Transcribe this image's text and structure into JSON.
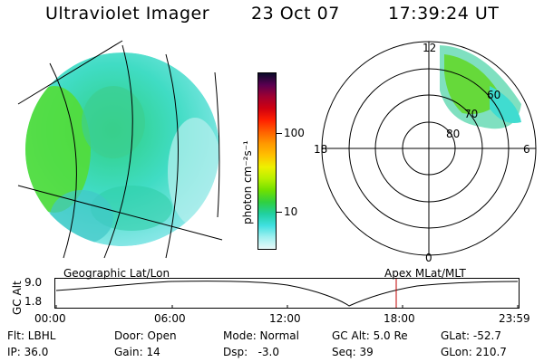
{
  "header": {
    "title": "Ultraviolet Imager",
    "date": "23 Oct 07",
    "time": "17:39:24 UT"
  },
  "colorbar": {
    "unit_label": "photon cm⁻²s⁻¹",
    "ticks": [
      "100",
      "10"
    ],
    "colors": [
      "#0a0a2a",
      "#5a0050",
      "#a00030",
      "#d00010",
      "#ff2000",
      "#ff6000",
      "#ff9800",
      "#ffc000",
      "#eef000",
      "#b8f000",
      "#70e000",
      "#30d040",
      "#20d0a0",
      "#40e0e0",
      "#a0f0f0",
      "#e8f8f8"
    ]
  },
  "polar_plot": {
    "mlt_labels": {
      "top": "12",
      "left": "18",
      "right": "6",
      "bottom": "0"
    },
    "lat_labels": [
      "60",
      "70",
      "80"
    ]
  },
  "altitude_panel": {
    "left_label": "Geographic Lat/Lon",
    "right_label": "Apex MLat/MLT",
    "y_axis_title": "GC Alt",
    "y_ticks": [
      "9.0",
      "1.8"
    ],
    "x_ticks": [
      "00:00",
      "06:00",
      "12:00",
      "18:00",
      "23:59"
    ],
    "marker_color": "#c00000"
  },
  "info": {
    "filter": "Flt: LBHL",
    "ip": "IP: 36.0",
    "door": "Door: Open",
    "gain": "Gain: 14",
    "mode": "Mode: Normal",
    "dsp": "Dsp:   -3.0",
    "gc_alt": "GC Alt: 5.0 Re",
    "seq": "Seq: 39",
    "glat": "GLat: -52.7",
    "glon": "GLon: 210.7"
  }
}
